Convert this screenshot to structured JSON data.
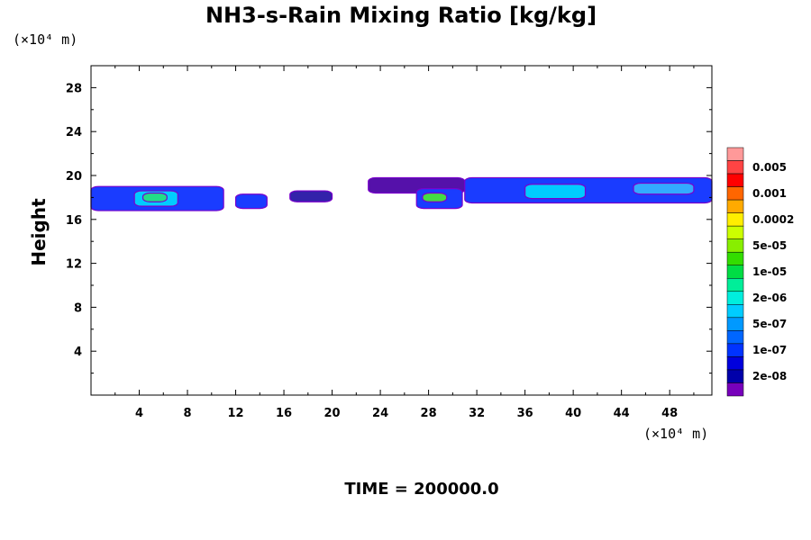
{
  "chart_data": {
    "type": "contour",
    "title": "NH3-s-Rain Mixing Ratio [kg/kg]",
    "ylabel": "Height",
    "x_unit": "(×10⁴ m)",
    "y_unit": "(×10⁴ m)",
    "footer": "TIME = 200000.0",
    "xlim": [
      0,
      51.5
    ],
    "ylim": [
      0,
      30
    ],
    "x_ticks": [
      4,
      8,
      12,
      16,
      20,
      24,
      28,
      32,
      36,
      40,
      44,
      48
    ],
    "y_ticks": [
      4,
      8,
      12,
      16,
      20,
      24,
      28
    ],
    "colorbar": {
      "labels": [
        "0.005",
        "0.001",
        "0.0002",
        "5e-05",
        "1e-05",
        "2e-06",
        "5e-07",
        "1e-07",
        "2e-08"
      ],
      "colors": [
        "#ff9999",
        "#ff4444",
        "#ff0000",
        "#ff6600",
        "#ffaa00",
        "#ffee00",
        "#ccff00",
        "#88ee00",
        "#33dd00",
        "#00dd44",
        "#00ee99",
        "#00eedd",
        "#00ccff",
        "#0099ff",
        "#0066ff",
        "#0033ff",
        "#0000dd",
        "#0000aa",
        "#7700bb"
      ]
    },
    "regions": [
      {
        "x0": 0.0,
        "x1": 11.0,
        "y0": 16.8,
        "y1": 19.0,
        "level": "1e-07",
        "color": "#1a3cff"
      },
      {
        "x0": 3.6,
        "x1": 7.2,
        "y0": 17.2,
        "y1": 18.6,
        "level": "5e-07",
        "color": "#00ccff"
      },
      {
        "x0": 4.3,
        "x1": 6.3,
        "y0": 17.6,
        "y1": 18.4,
        "level": "2e-06",
        "color": "#22dd88"
      },
      {
        "x0": 12.0,
        "x1": 14.6,
        "y0": 17.0,
        "y1": 18.3,
        "level": "1e-07",
        "color": "#1a3cff"
      },
      {
        "x0": 16.5,
        "x1": 20.0,
        "y0": 17.6,
        "y1": 18.6,
        "level": "2e-08",
        "color": "#3322aa"
      },
      {
        "x0": 23.0,
        "x1": 31.0,
        "y0": 18.4,
        "y1": 19.8,
        "level": "2e-08",
        "color": "#5511aa"
      },
      {
        "x0": 27.0,
        "x1": 30.8,
        "y0": 17.0,
        "y1": 18.8,
        "level": "1e-07",
        "color": "#1a3cff"
      },
      {
        "x0": 27.5,
        "x1": 29.5,
        "y0": 17.6,
        "y1": 18.4,
        "level": "1e-05",
        "color": "#44dd44"
      },
      {
        "x0": 31.0,
        "x1": 51.5,
        "y0": 17.5,
        "y1": 19.8,
        "level": "1e-07",
        "color": "#1a3cff"
      },
      {
        "x0": 36.0,
        "x1": 41.0,
        "y0": 17.9,
        "y1": 19.2,
        "level": "5e-07",
        "color": "#00ccff"
      },
      {
        "x0": 45.0,
        "x1": 50.0,
        "y0": 18.3,
        "y1": 19.3,
        "level": "5e-07",
        "color": "#33aaff"
      }
    ]
  }
}
